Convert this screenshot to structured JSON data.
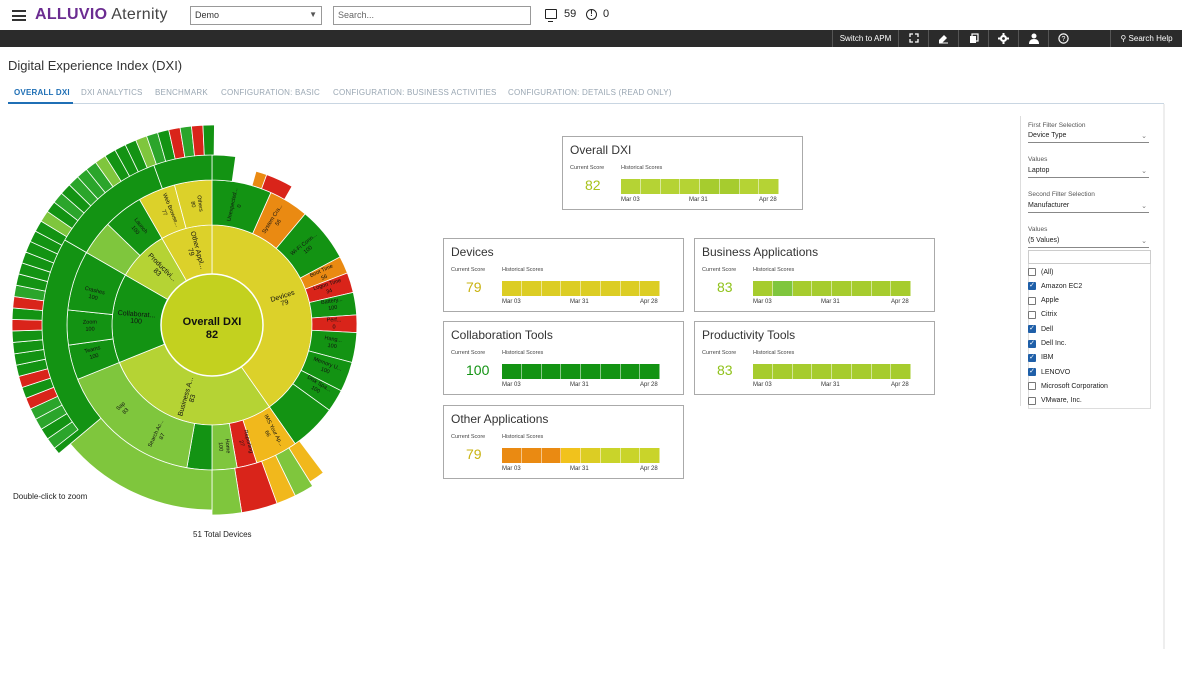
{
  "header": {
    "logo_brand": "ALLUVIO",
    "logo_product": "Aternity",
    "demo_select": "Demo",
    "search_placeholder": "Search...",
    "devices_count": "59",
    "alerts_count": "0"
  },
  "toolbar": {
    "switch_apm": "Switch to APM",
    "search_help": "Search Help",
    "icons": [
      "expand-icon",
      "edit-icon",
      "copy-icon",
      "gear-icon",
      "user-icon",
      "help-icon",
      "search-icon"
    ]
  },
  "page": {
    "title": "Digital Experience Index (DXI)",
    "tabs": [
      {
        "label": "OVERALL DXI",
        "active": true
      },
      {
        "label": "DXI ANALYTICS"
      },
      {
        "label": "BENCHMARK"
      },
      {
        "label": "CONFIGURATION: BASIC"
      },
      {
        "label": "CONFIGURATION: BUSINESS ACTIVITIES"
      },
      {
        "label": "CONFIGURATION: DETAILS (READ ONLY)"
      }
    ]
  },
  "sunburst": {
    "center_title": "Overall DXI",
    "center_value": "82",
    "zoom_hint": "Double-click to zoom",
    "total_devices": "51 Total Devices",
    "colors": {
      "dark_green": "#139313",
      "green": "#2ba52b",
      "light_green": "#7fc63d",
      "yellow_green": "#b5d334",
      "yellow": "#dcd12a",
      "gold": "#f1b81c",
      "orange": "#ea8a12",
      "red": "#d9241a"
    },
    "ring1": [
      {
        "label": "Devices",
        "value": "79"
      },
      {
        "label": "Business A...",
        "value": "83"
      },
      {
        "label": "Collaborat...",
        "value": "100"
      },
      {
        "label": "Productivi...",
        "value": "83"
      },
      {
        "label": "Other Appl...",
        "value": "79"
      }
    ],
    "ring2_labels": [
      {
        "label": "Unexpected...",
        "value": "0"
      },
      {
        "label": "System Cra...",
        "value": "56"
      },
      {
        "label": "Wi-Fi Conn...",
        "value": "100"
      },
      {
        "label": "Boot Time",
        "value": "56"
      },
      {
        "label": "Logon Time",
        "value": "34"
      },
      {
        "label": "Battery...",
        "value": "100"
      },
      {
        "label": "Perf...",
        "value": "0"
      },
      {
        "label": "Hang...",
        "value": "100"
      },
      {
        "label": "Memory U...",
        "value": "100"
      },
      {
        "label": "Disk Spa...",
        "value": "100"
      },
      {
        "label": "IMS Your Ap...",
        "value": "66"
      },
      {
        "label": "Reporting",
        "value": "27"
      },
      {
        "label": "Home",
        "value": "100"
      },
      {
        "label": "Search Ac...",
        "value": "87"
      },
      {
        "label": "Sap",
        "value": "83"
      },
      {
        "label": "Teams",
        "value": "100"
      },
      {
        "label": "Zoom",
        "value": "100"
      },
      {
        "label": "Crashes",
        "value": "100"
      },
      {
        "label": "Launch",
        "value": "100"
      },
      {
        "label": "Web Browse...",
        "value": "77"
      },
      {
        "label": "Others",
        "value": "80"
      }
    ]
  },
  "cards": [
    {
      "name": "overall",
      "title": "Overall DXI",
      "current_label": "Current Score",
      "hist_label": "Historical Scores",
      "score": "82",
      "score_color": "#a8c21a",
      "colors": [
        "#b5d334",
        "#b5d334",
        "#b5d334",
        "#b5d334",
        "#a6cc2e",
        "#a6cc2e",
        "#b5d334",
        "#b5d334"
      ],
      "dates": [
        "Mar 03",
        "Mar 31",
        "Apr 28"
      ]
    },
    {
      "name": "devices",
      "title": "Devices",
      "current_label": "Current Score",
      "hist_label": "Historical Scores",
      "score": "79",
      "score_color": "#c9b312",
      "colors": [
        "#dccd24",
        "#dccd24",
        "#dccd24",
        "#dccd24",
        "#dccd24",
        "#dccd24",
        "#dccd24",
        "#dccd24"
      ],
      "dates": [
        "Mar 03",
        "Mar 31",
        "Apr 28"
      ]
    },
    {
      "name": "business",
      "title": "Business Applications",
      "current_label": "Current Score",
      "hist_label": "Historical Scores",
      "score": "83",
      "score_color": "#8fc21a",
      "colors": [
        "#a6cc2e",
        "#7fc63d",
        "#a6cc2e",
        "#a6cc2e",
        "#a6cc2e",
        "#a6cc2e",
        "#a6cc2e",
        "#a6cc2e"
      ],
      "dates": [
        "Mar 03",
        "Mar 31",
        "Apr 28"
      ]
    },
    {
      "name": "collaboration",
      "title": "Collaboration Tools",
      "current_label": "Current Score",
      "hist_label": "Historical Scores",
      "score": "100",
      "score_color": "#139313",
      "colors": [
        "#139313",
        "#139313",
        "#139313",
        "#139313",
        "#139313",
        "#139313",
        "#139313",
        "#139313"
      ],
      "dates": [
        "Mar 03",
        "Mar 31",
        "Apr 28"
      ]
    },
    {
      "name": "productivity",
      "title": "Productivity Tools",
      "current_label": "Current Score",
      "hist_label": "Historical Scores",
      "score": "83",
      "score_color": "#8fc21a",
      "colors": [
        "#a6cc2e",
        "#a6cc2e",
        "#a6cc2e",
        "#a6cc2e",
        "#a6cc2e",
        "#a6cc2e",
        "#a6cc2e",
        "#a6cc2e"
      ],
      "dates": [
        "Mar 03",
        "Mar 31",
        "Apr 28"
      ]
    },
    {
      "name": "other",
      "title": "Other Applications",
      "current_label": "Current Score",
      "hist_label": "Historical Scores",
      "score": "79",
      "score_color": "#c9b312",
      "colors": [
        "#ea8a12",
        "#ea8a12",
        "#ea8a12",
        "#f1c21c",
        "#dccd24",
        "#c9d42a",
        "#c9d42a",
        "#c9d42a"
      ],
      "dates": [
        "Mar 03",
        "Mar 31",
        "Apr 28"
      ]
    }
  ],
  "filters": {
    "first_label": "First Filter Selection",
    "first_value": "Device Type",
    "values_label": "Values",
    "values_value": "Laptop",
    "second_label": "Second Filter Selection",
    "second_value": "Manufacturer",
    "values2_label": "Values",
    "values2_value": "(5 Values)",
    "options": [
      {
        "label": "(All)",
        "checked": false
      },
      {
        "label": "Amazon EC2",
        "checked": true
      },
      {
        "label": "Apple",
        "checked": false
      },
      {
        "label": "Citrix",
        "checked": false
      },
      {
        "label": "Dell",
        "checked": true
      },
      {
        "label": "Dell Inc.",
        "checked": true
      },
      {
        "label": "IBM",
        "checked": true
      },
      {
        "label": "LENOVO",
        "checked": true
      },
      {
        "label": "Microsoft Corporation",
        "checked": false
      },
      {
        "label": "VMware, Inc.",
        "checked": false
      }
    ]
  }
}
